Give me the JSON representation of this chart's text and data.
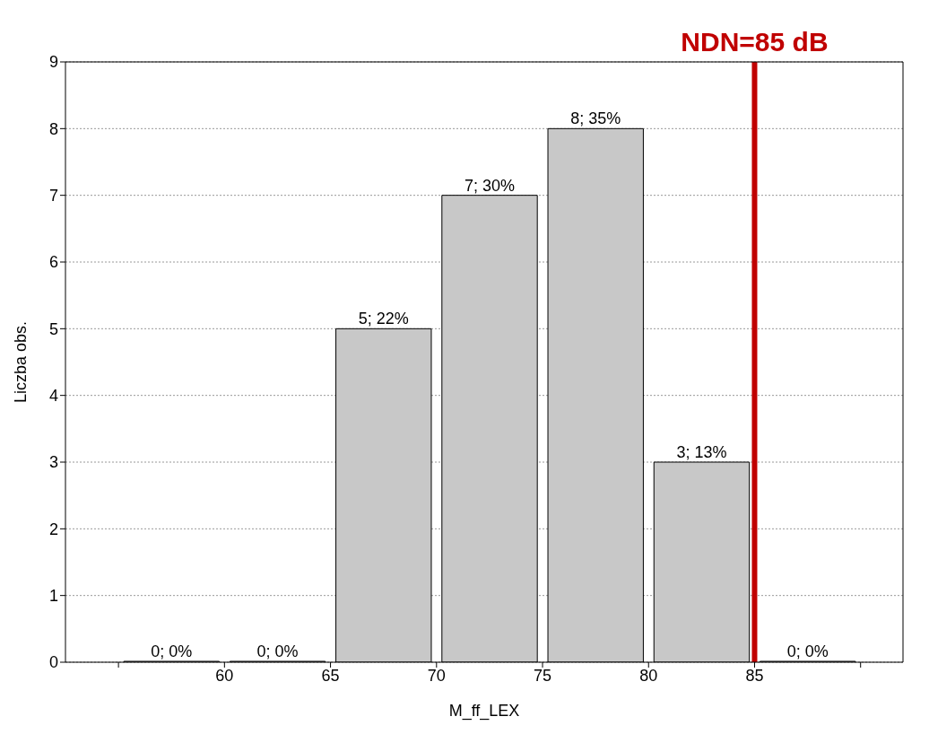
{
  "chart_data": {
    "type": "histogram",
    "xlabel": "M_ff_LEX",
    "ylabel": "Liczba obs.",
    "bins": [
      55,
      60,
      65,
      70,
      75,
      80,
      85,
      90
    ],
    "values": [
      0,
      0,
      5,
      7,
      8,
      3,
      0
    ],
    "value_labels": [
      "0; 0%",
      "0; 0%",
      "5; 22%",
      "7; 30%",
      "8; 35%",
      "3; 13%",
      "0; 0%"
    ],
    "color": "#c8c8c8",
    "xlim": [
      52.5,
      92
    ],
    "xticks": [
      {
        "value": 55,
        "label": null
      },
      60,
      65,
      70,
      75,
      80,
      85,
      {
        "value": 90,
        "label": null
      }
    ],
    "ylim": [
      0,
      9
    ],
    "yticks": [
      0,
      1,
      2,
      3,
      4,
      5,
      6,
      7,
      8,
      9
    ],
    "grid": "y",
    "ref_lines": [
      {
        "axis": "x",
        "value": 85,
        "label": "NDN=85 dB",
        "color": "#c00000"
      }
    ]
  }
}
